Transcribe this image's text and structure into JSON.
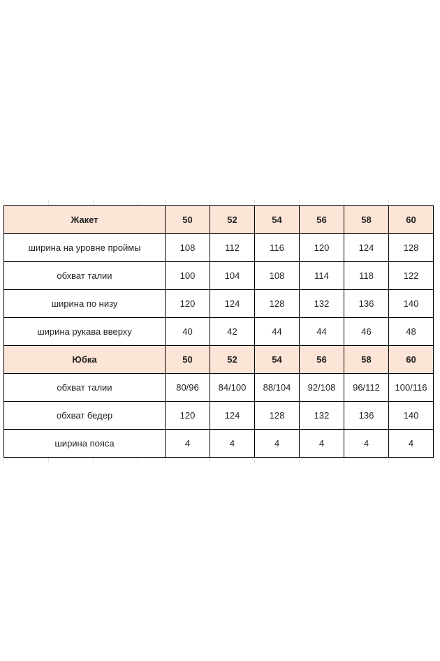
{
  "sections": [
    {
      "title": "Жакет",
      "sizes": [
        "50",
        "52",
        "54",
        "56",
        "58",
        "60"
      ],
      "rows": [
        {
          "label": "ширина на уровне проймы",
          "values": [
            "108",
            "112",
            "116",
            "120",
            "124",
            "128"
          ]
        },
        {
          "label": "обхват талии",
          "values": [
            "100",
            "104",
            "108",
            "114",
            "118",
            "122"
          ]
        },
        {
          "label": "ширина по низу",
          "values": [
            "120",
            "124",
            "128",
            "132",
            "136",
            "140"
          ]
        },
        {
          "label": "ширина рукава вверху",
          "values": [
            "40",
            "42",
            "44",
            "44",
            "46",
            "48"
          ]
        }
      ]
    },
    {
      "title": "Юбка",
      "sizes": [
        "50",
        "52",
        "54",
        "56",
        "58",
        "60"
      ],
      "rows": [
        {
          "label": "обхват талии",
          "values": [
            "80/96",
            "84/100",
            "88/104",
            "92/108",
            "96/112",
            "100/116"
          ]
        },
        {
          "label": "обхват бедер",
          "values": [
            "120",
            "124",
            "128",
            "132",
            "136",
            "140"
          ]
        },
        {
          "label": "ширина пояса",
          "values": [
            "4",
            "4",
            "4",
            "4",
            "4",
            "4"
          ]
        }
      ]
    }
  ],
  "colors": {
    "header_fill": "#fce4d6",
    "border": "#000000"
  }
}
